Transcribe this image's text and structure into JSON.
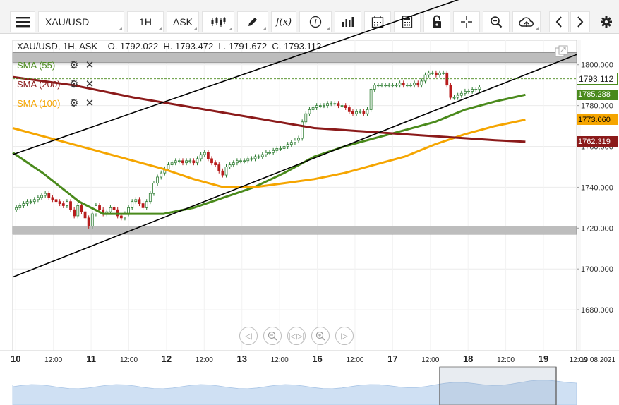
{
  "toolbar": {
    "symbol": "XAU/USD",
    "timeframe": "1H",
    "price_type": "ASK",
    "function_label": "f(x)",
    "info_label": "i"
  },
  "header": {
    "ohlc_line": "XAU/USD, 1H, ASK    O. 1792.022  H. 1793.472  L. 1791.672  C. 1793.112"
  },
  "legend": [
    {
      "label": "SMA (55)",
      "color": "#4a8a1c"
    },
    {
      "label": "SMA (200)",
      "color": "#8b1a1a"
    },
    {
      "label": "SMA (100)",
      "color": "#f5a500"
    }
  ],
  "price_badges": [
    {
      "value": "1793.112",
      "bg": "#4a8a1c",
      "fg": "#ffffff",
      "price": 1793.112
    },
    {
      "value": "1785.288",
      "bg": "#4a8a1c",
      "fg": "#ffffff",
      "price": 1785.288
    },
    {
      "value": "1773.060",
      "bg": "#f5a500",
      "fg": "#000000",
      "price": 1773.06
    },
    {
      "value": "1762.319",
      "bg": "#8b1a1a",
      "fg": "#ffffff",
      "price": 1762.319
    }
  ],
  "colors": {
    "sma55": "#4a8a1c",
    "sma200": "#8b1a1a",
    "sma100": "#f5a500",
    "bull": "#2e7d32",
    "bear": "#b71c1c",
    "zone": "#bdbdbd",
    "trend": "#000000"
  },
  "chart_data": {
    "type": "candlestick",
    "title": "XAU/USD, 1H, ASK",
    "ylim": [
      1660,
      1812
    ],
    "y_ticks": [
      "1800.000",
      "1780.000",
      "1760.000",
      "1740.000",
      "1720.000",
      "1700.000",
      "1680.000"
    ],
    "x_ticks": [
      "10",
      "12:00",
      "11",
      "12:00",
      "12",
      "12:00",
      "13",
      "12:00",
      "16",
      "12:00",
      "17",
      "12:00",
      "18",
      "12:00",
      "19",
      "12:00",
      "19.08.2021"
    ],
    "x_range": [
      0,
      187
    ],
    "support_zone": [
      1717,
      1721
    ],
    "resistance_zone": [
      1801,
      1806
    ],
    "trend_lines": [
      {
        "x": [
          0,
          187
        ],
        "y": [
          1696,
          1805
        ]
      },
      {
        "x": [
          0,
          187
        ],
        "y": [
          1756,
          1852
        ]
      }
    ],
    "series": [
      {
        "name": "SMA (55)",
        "x": [
          0,
          10,
          22,
          30,
          40,
          50,
          60,
          70,
          80,
          90,
          100,
          110,
          120,
          130,
          140,
          150,
          160,
          170
        ],
        "values": [
          1757,
          1747,
          1733,
          1727,
          1727,
          1727,
          1730,
          1735,
          1740,
          1747,
          1755,
          1760,
          1764,
          1768,
          1772,
          1778,
          1782,
          1785.3
        ]
      },
      {
        "name": "SMA (100)",
        "x": [
          0,
          10,
          20,
          30,
          40,
          50,
          60,
          70,
          80,
          90,
          100,
          110,
          120,
          130,
          140,
          150,
          160,
          170
        ],
        "values": [
          1769,
          1765,
          1761,
          1757,
          1753,
          1749,
          1744,
          1740,
          1740,
          1742,
          1744,
          1747,
          1751,
          1755,
          1761,
          1766,
          1770,
          1773.1
        ]
      },
      {
        "name": "SMA (200)",
        "x": [
          0,
          20,
          40,
          60,
          80,
          100,
          110,
          120,
          130,
          140,
          150,
          160,
          170
        ],
        "values": [
          1794,
          1790,
          1784,
          1779,
          1774,
          1769,
          1768,
          1767,
          1766,
          1765,
          1764,
          1763,
          1762.3
        ]
      }
    ],
    "candles_close": [
      1729,
      1730,
      1731,
      1732,
      1733,
      1733,
      1734,
      1735,
      1736,
      1737,
      1735,
      1734,
      1733,
      1732,
      1731,
      1733,
      1729,
      1726,
      1731,
      1728,
      1725,
      1721,
      1727,
      1731,
      1729,
      1727,
      1728,
      1730,
      1729,
      1726,
      1725,
      1727,
      1730,
      1733,
      1734,
      1732,
      1730,
      1733,
      1737,
      1742,
      1745,
      1747,
      1749,
      1751,
      1752,
      1753,
      1753,
      1752,
      1753,
      1753,
      1752,
      1754,
      1756,
      1757,
      1754,
      1752,
      1751,
      1748,
      1746,
      1750,
      1751,
      1752,
      1753,
      1753,
      1753,
      1754,
      1754,
      1755,
      1755,
      1756,
      1757,
      1757,
      1758,
      1759,
      1759,
      1760,
      1761,
      1762,
      1763,
      1764,
      1772,
      1776,
      1778,
      1779,
      1780,
      1780,
      1780,
      1781,
      1781,
      1781,
      1780,
      1780,
      1779,
      1777,
      1776,
      1777,
      1777,
      1776,
      1778,
      1788,
      1790,
      1790,
      1790,
      1790,
      1790,
      1790,
      1790,
      1791,
      1790,
      1790,
      1790,
      1791,
      1790,
      1792,
      1795,
      1796,
      1796,
      1795,
      1796,
      1796,
      1790,
      1784,
      1784,
      1785,
      1786,
      1787,
      1787,
      1788,
      1788,
      1789,
      1791,
      1791,
      1792,
      1792,
      1792,
      1793.1
    ]
  }
}
